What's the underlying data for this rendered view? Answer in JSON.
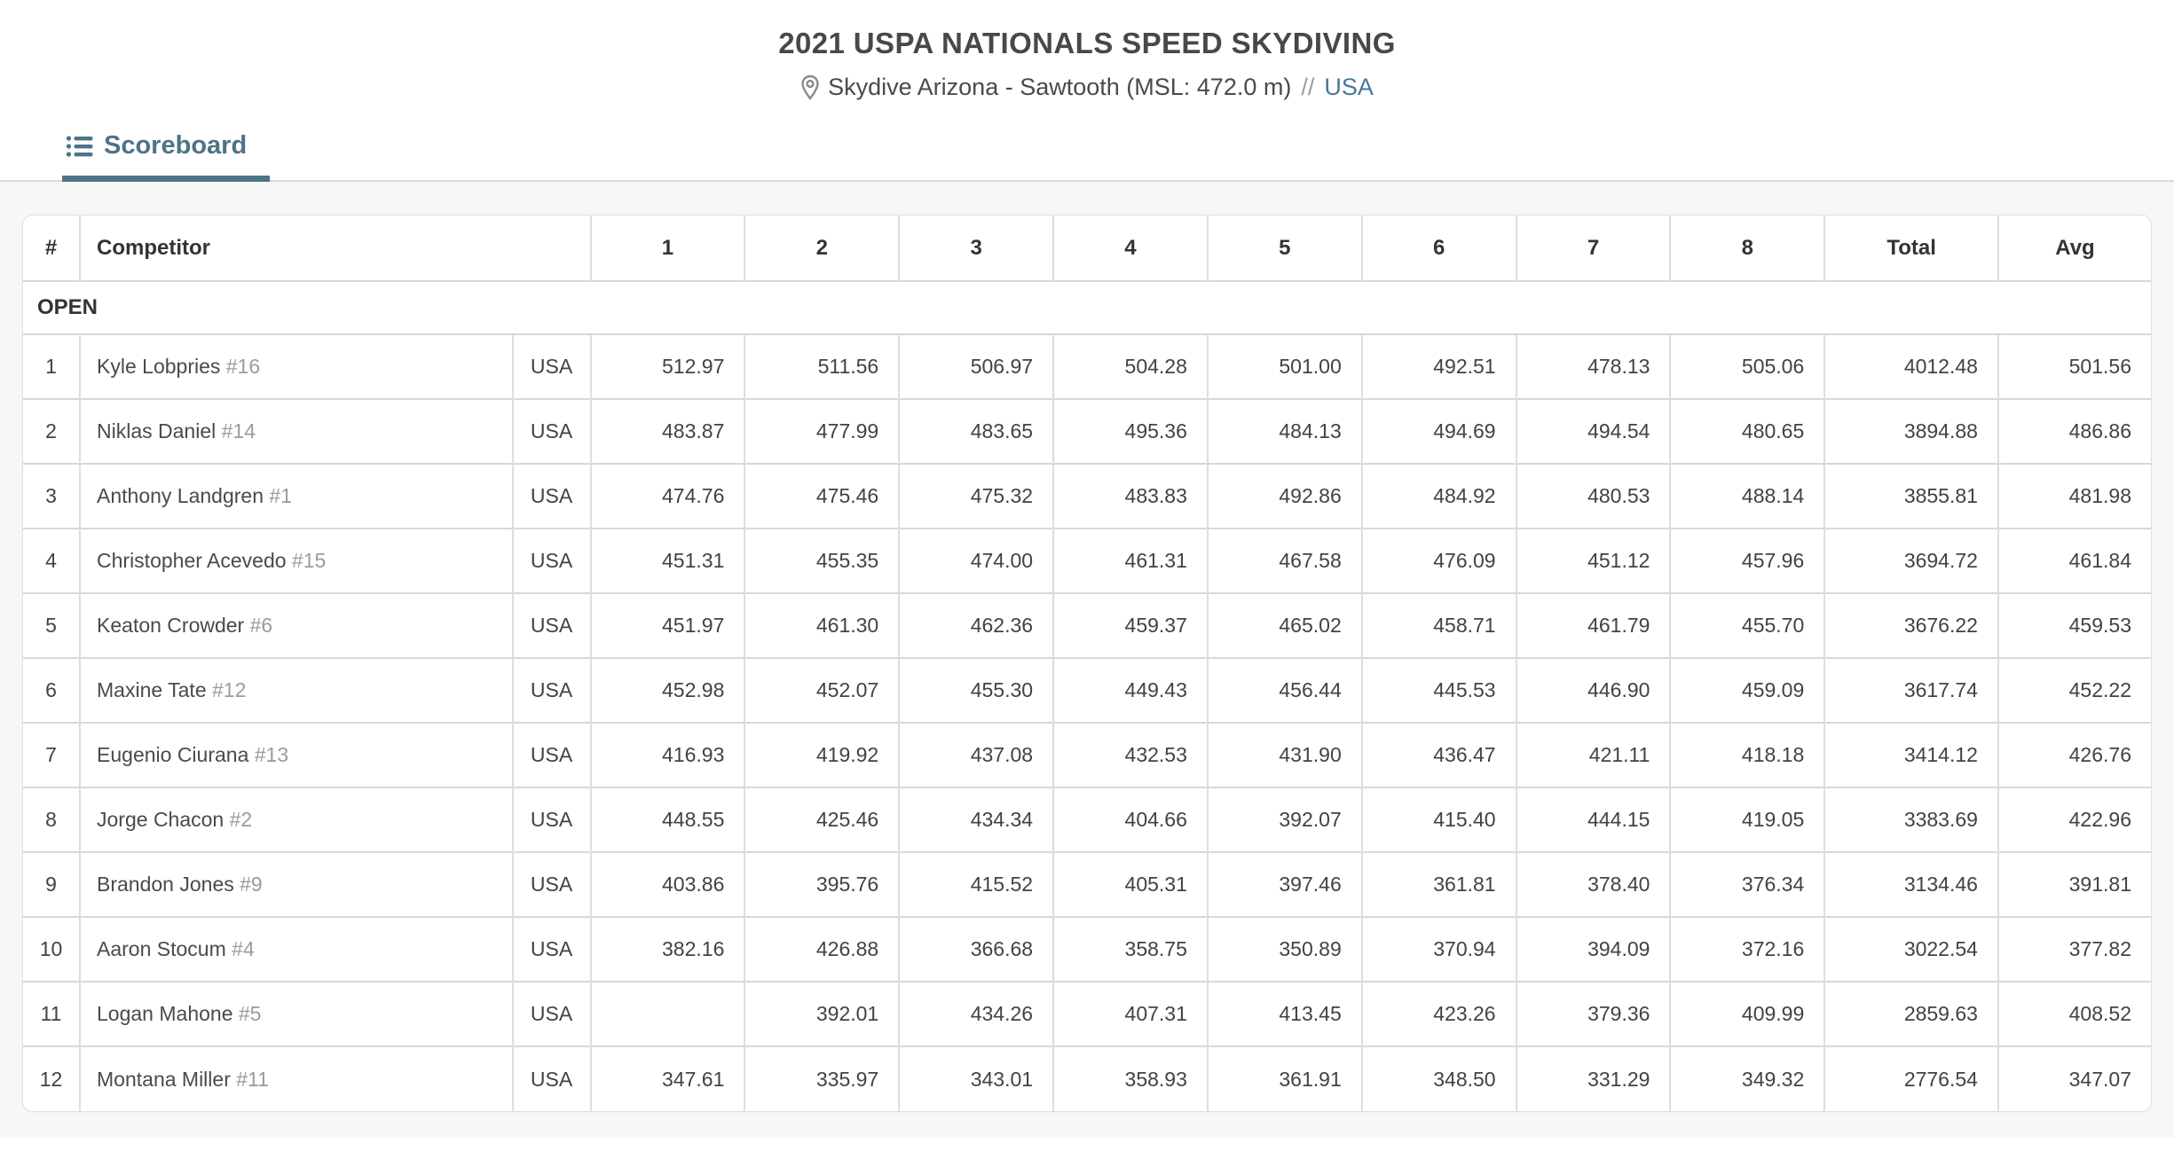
{
  "header": {
    "title": "2021 USPA NATIONALS SPEED SKYDIVING",
    "location": "Skydive Arizona - Sawtooth (MSL: 472.0 m)",
    "separator": "//",
    "country_link": "USA"
  },
  "tabs": {
    "scoreboard": "Scoreboard"
  },
  "colors": {
    "accent_tab": "#4d7387",
    "link_blue": "#47789a",
    "bib_gray": "#9b9b9b"
  },
  "icons": {
    "location": "location-pin-icon",
    "tab": "list-icon"
  },
  "table": {
    "columns": [
      "#",
      "Competitor",
      "1",
      "2",
      "3",
      "4",
      "5",
      "6",
      "7",
      "8",
      "Total",
      "Avg"
    ],
    "section": "OPEN",
    "rows": [
      {
        "rank": "1",
        "name": "Kyle Lobpries",
        "bib": "#16",
        "country": "USA",
        "rounds": [
          "512.97",
          "511.56",
          "506.97",
          "504.28",
          "501.00",
          "492.51",
          "478.13",
          "505.06"
        ],
        "total": "4012.48",
        "avg": "501.56"
      },
      {
        "rank": "2",
        "name": "Niklas Daniel",
        "bib": "#14",
        "country": "USA",
        "rounds": [
          "483.87",
          "477.99",
          "483.65",
          "495.36",
          "484.13",
          "494.69",
          "494.54",
          "480.65"
        ],
        "total": "3894.88",
        "avg": "486.86"
      },
      {
        "rank": "3",
        "name": "Anthony Landgren",
        "bib": "#1",
        "country": "USA",
        "rounds": [
          "474.76",
          "475.46",
          "475.32",
          "483.83",
          "492.86",
          "484.92",
          "480.53",
          "488.14"
        ],
        "total": "3855.81",
        "avg": "481.98"
      },
      {
        "rank": "4",
        "name": "Christopher Acevedo",
        "bib": "#15",
        "country": "USA",
        "rounds": [
          "451.31",
          "455.35",
          "474.00",
          "461.31",
          "467.58",
          "476.09",
          "451.12",
          "457.96"
        ],
        "total": "3694.72",
        "avg": "461.84"
      },
      {
        "rank": "5",
        "name": "Keaton Crowder",
        "bib": "#6",
        "country": "USA",
        "rounds": [
          "451.97",
          "461.30",
          "462.36",
          "459.37",
          "465.02",
          "458.71",
          "461.79",
          "455.70"
        ],
        "total": "3676.22",
        "avg": "459.53"
      },
      {
        "rank": "6",
        "name": "Maxine Tate",
        "bib": "#12",
        "country": "USA",
        "rounds": [
          "452.98",
          "452.07",
          "455.30",
          "449.43",
          "456.44",
          "445.53",
          "446.90",
          "459.09"
        ],
        "total": "3617.74",
        "avg": "452.22"
      },
      {
        "rank": "7",
        "name": "Eugenio Ciurana",
        "bib": "#13",
        "country": "USA",
        "rounds": [
          "416.93",
          "419.92",
          "437.08",
          "432.53",
          "431.90",
          "436.47",
          "421.11",
          "418.18"
        ],
        "total": "3414.12",
        "avg": "426.76"
      },
      {
        "rank": "8",
        "name": "Jorge Chacon",
        "bib": "#2",
        "country": "USA",
        "rounds": [
          "448.55",
          "425.46",
          "434.34",
          "404.66",
          "392.07",
          "415.40",
          "444.15",
          "419.05"
        ],
        "total": "3383.69",
        "avg": "422.96"
      },
      {
        "rank": "9",
        "name": "Brandon Jones",
        "bib": "#9",
        "country": "USA",
        "rounds": [
          "403.86",
          "395.76",
          "415.52",
          "405.31",
          "397.46",
          "361.81",
          "378.40",
          "376.34"
        ],
        "total": "3134.46",
        "avg": "391.81"
      },
      {
        "rank": "10",
        "name": "Aaron Stocum",
        "bib": "#4",
        "country": "USA",
        "rounds": [
          "382.16",
          "426.88",
          "366.68",
          "358.75",
          "350.89",
          "370.94",
          "394.09",
          "372.16"
        ],
        "total": "3022.54",
        "avg": "377.82"
      },
      {
        "rank": "11",
        "name": "Logan Mahone",
        "bib": "#5",
        "country": "USA",
        "rounds": [
          "",
          "392.01",
          "434.26",
          "407.31",
          "413.45",
          "423.26",
          "379.36",
          "409.99"
        ],
        "total": "2859.63",
        "avg": "408.52"
      },
      {
        "rank": "12",
        "name": "Montana Miller",
        "bib": "#11",
        "country": "USA",
        "rounds": [
          "347.61",
          "335.97",
          "343.01",
          "358.93",
          "361.91",
          "348.50",
          "331.29",
          "349.32"
        ],
        "total": "2776.54",
        "avg": "347.07"
      }
    ]
  }
}
